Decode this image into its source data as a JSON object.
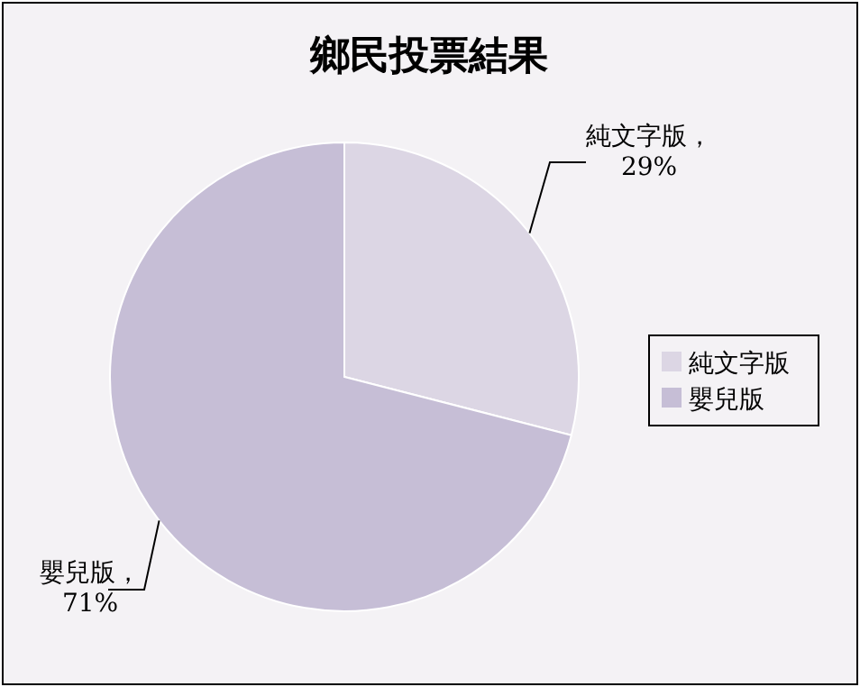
{
  "chart_data": {
    "type": "pie",
    "title": "鄉民投票結果",
    "categories": [
      "純文字版",
      "嬰兒版"
    ],
    "values": [
      29,
      71
    ],
    "colors": [
      "#dcd6e4",
      "#c6bed6"
    ],
    "value_labels": [
      "純文字版，29%",
      "嬰兒版，71%"
    ],
    "legend": "right"
  }
}
